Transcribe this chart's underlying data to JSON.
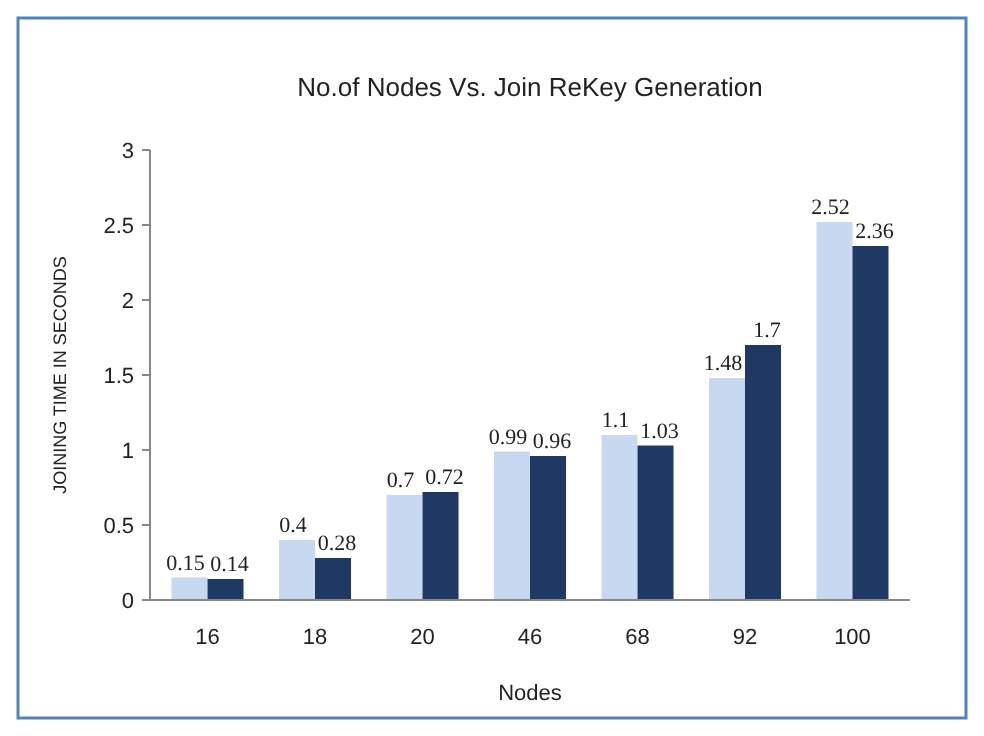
{
  "chart_data": {
    "type": "bar",
    "title": "No.of Nodes Vs. Join ReKey Generation",
    "xlabel": "Nodes",
    "ylabel": "JOINING TIME IN SECONDS",
    "categories": [
      "16",
      "18",
      "20",
      "46",
      "68",
      "92",
      "100"
    ],
    "series": [
      {
        "color": "#c6d9f1",
        "values": [
          0.15,
          0.4,
          0.7,
          0.99,
          1.1,
          1.48,
          2.52
        ]
      },
      {
        "color": "#1f3864",
        "values": [
          0.14,
          0.28,
          0.72,
          0.96,
          1.03,
          1.7,
          2.36
        ]
      }
    ],
    "ylim": [
      0,
      3
    ],
    "yticks": [
      0,
      0.5,
      1,
      1.5,
      2,
      2.5,
      3
    ],
    "grid": false,
    "data_labels": true
  }
}
